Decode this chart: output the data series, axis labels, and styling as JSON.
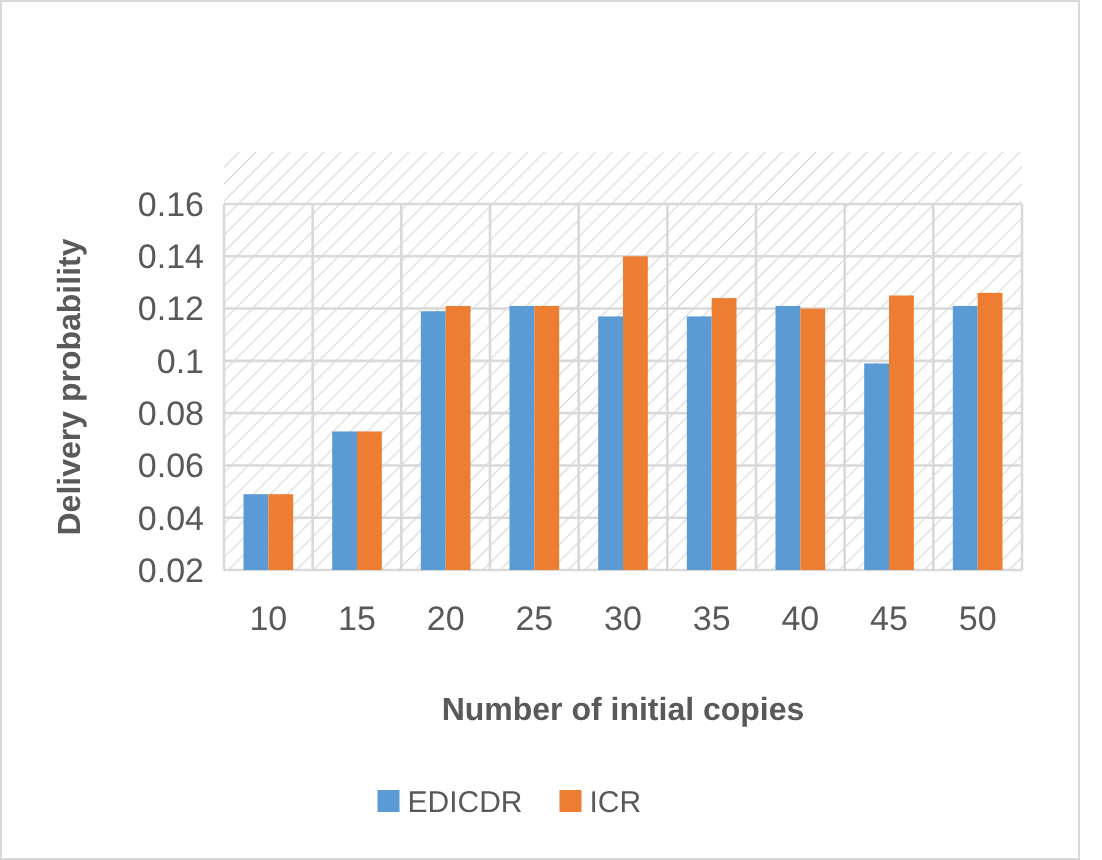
{
  "chart_data": {
    "type": "bar",
    "xlabel": "Number of initial copies",
    "ylabel": "Delivery probability",
    "categories": [
      "10",
      "15",
      "20",
      "25",
      "30",
      "35",
      "40",
      "45",
      "50"
    ],
    "series": [
      {
        "name": "EDICDR",
        "color": "#5b9bd5",
        "values": [
          0.049,
          0.073,
          0.119,
          0.121,
          0.117,
          0.117,
          0.121,
          0.099,
          0.121
        ]
      },
      {
        "name": "ICR",
        "color": "#ed7d31",
        "values": [
          0.049,
          0.073,
          0.121,
          0.121,
          0.14,
          0.124,
          0.12,
          0.125,
          0.126
        ]
      }
    ],
    "ylim": [
      0.02,
      0.16
    ],
    "yticks": [
      0.02,
      0.04,
      0.06,
      {
        "value": 0.08,
        "label": "0.08"
      },
      0.1,
      0.12,
      0.14,
      0.16
    ],
    "grid": true,
    "legend": "bottom"
  }
}
